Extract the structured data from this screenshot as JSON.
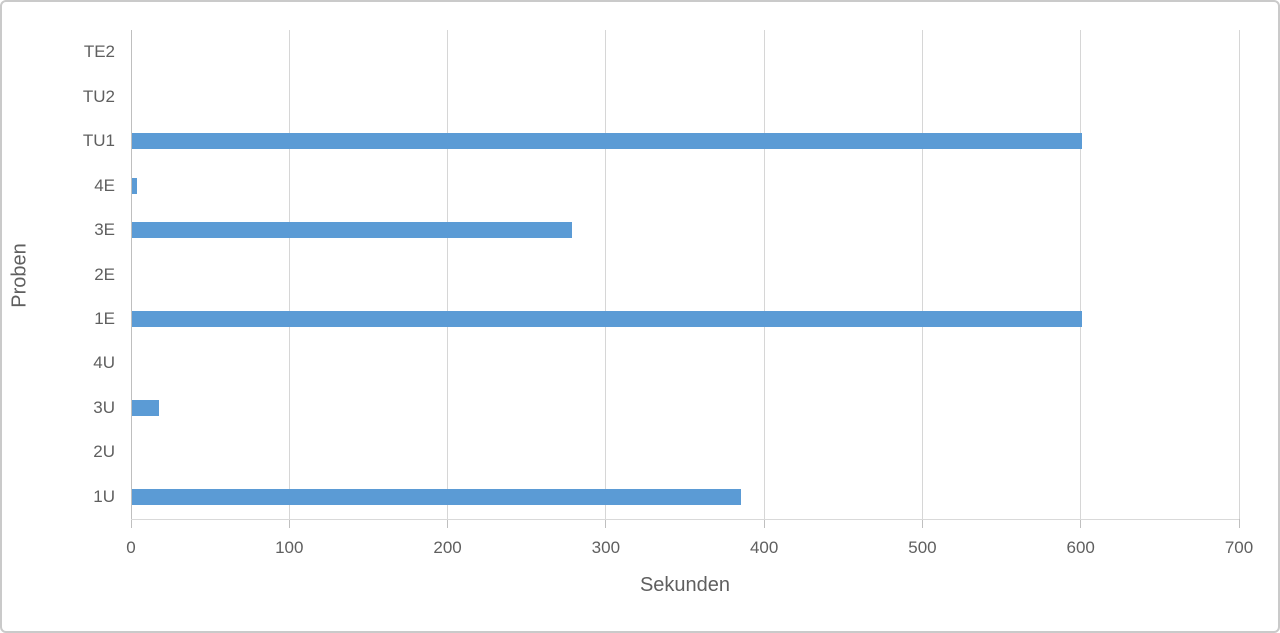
{
  "chart_data": {
    "type": "bar",
    "orientation": "horizontal",
    "title": "",
    "xlabel": "Sekunden",
    "ylabel": "Proben",
    "categories": [
      "TE2",
      "TU2",
      "TU1",
      "4E",
      "3E",
      "2E",
      "1E",
      "4U",
      "3U",
      "2U",
      "1U"
    ],
    "values": [
      0,
      0,
      600,
      3,
      278,
      0,
      600,
      0,
      17,
      0,
      385
    ],
    "xlim": [
      0,
      700
    ],
    "xticks": [
      0,
      100,
      200,
      300,
      400,
      500,
      600,
      700
    ],
    "grid": true,
    "legend": false,
    "colors": {
      "bar": "#5b9bd5",
      "gridline": "#d6d6d6",
      "axis_line": "#bfbfbf",
      "text": "#5f5f5f",
      "frame_border": "#cacaca"
    }
  }
}
